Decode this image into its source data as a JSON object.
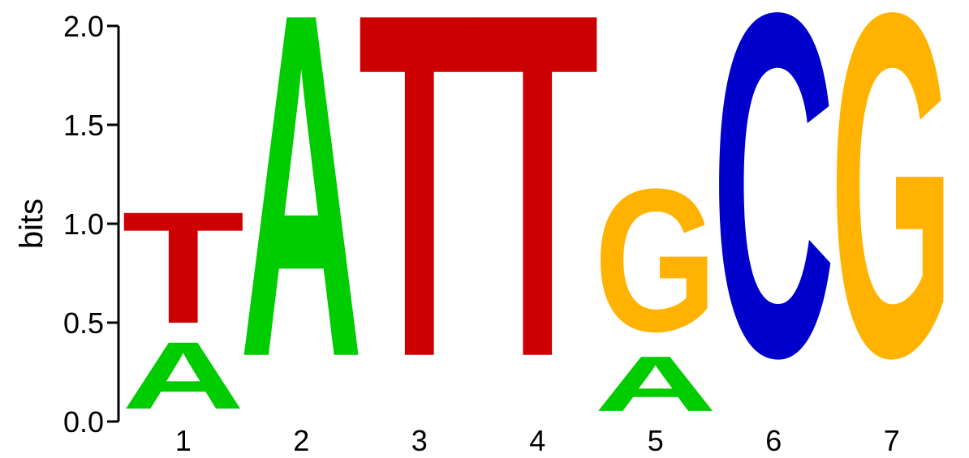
{
  "chart_data": {
    "type": "sequence-logo",
    "ylabel": "bits",
    "ylim": [
      0,
      2.0
    ],
    "yticks": [
      "0.0",
      "0.5",
      "1.0",
      "1.5",
      "2.0"
    ],
    "positions": [
      "1",
      "2",
      "3",
      "4",
      "5",
      "6",
      "7"
    ],
    "colors": {
      "A": "#00CC00",
      "C": "#0000CC",
      "G": "#FFB300",
      "T": "#CC0000"
    },
    "stacks": [
      [
        {
          "letter": "A",
          "bits": 0.39
        },
        {
          "letter": "T",
          "bits": 0.65
        }
      ],
      [
        {
          "letter": "A",
          "bits": 2.0
        }
      ],
      [
        {
          "letter": "T",
          "bits": 2.0
        }
      ],
      [
        {
          "letter": "T",
          "bits": 2.0
        }
      ],
      [
        {
          "letter": "A",
          "bits": 0.32
        },
        {
          "letter": "G",
          "bits": 0.83
        }
      ],
      [
        {
          "letter": "C",
          "bits": 2.0
        }
      ],
      [
        {
          "letter": "G",
          "bits": 2.0
        }
      ]
    ]
  }
}
